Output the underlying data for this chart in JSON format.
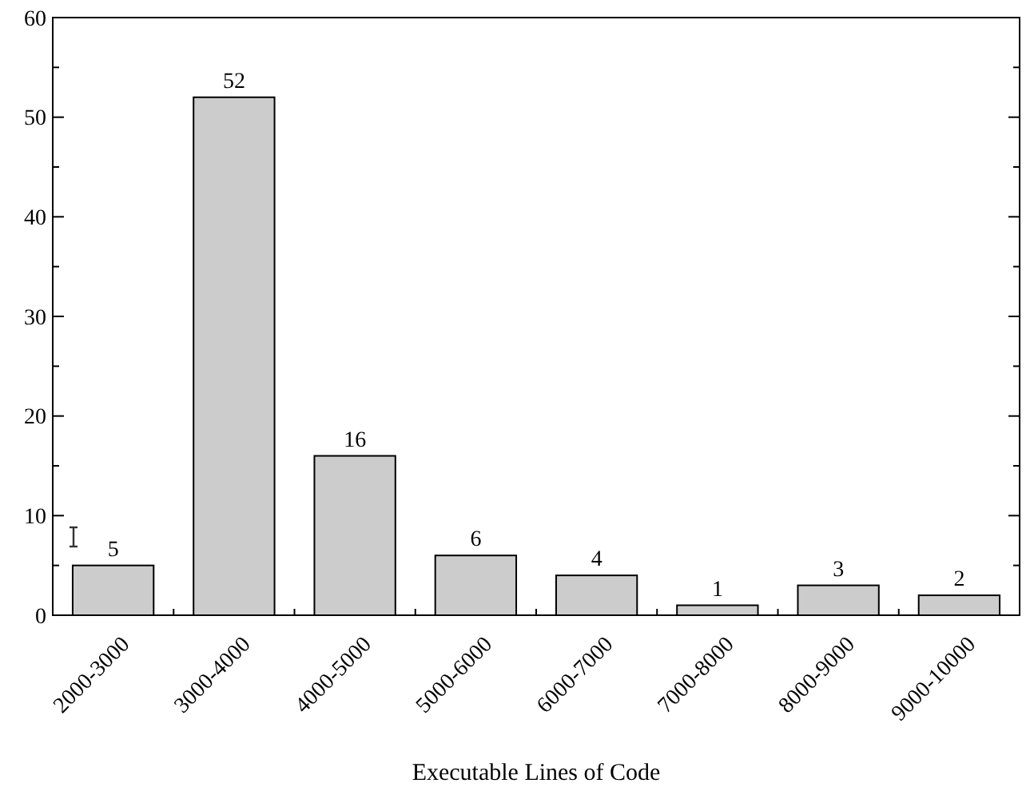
{
  "chart_data": {
    "type": "bar",
    "xlabel": "Executable Lines of Code",
    "categories": [
      "2000-3000",
      "3000-4000",
      "4000-5000",
      "5000-6000",
      "6000-7000",
      "7000-8000",
      "8000-9000",
      "9000-10000"
    ],
    "values": [
      5,
      52,
      16,
      6,
      4,
      1,
      3,
      2
    ],
    "color": "#cccccc",
    "data_labels": true,
    "ylim": [
      0,
      60
    ],
    "yticks": [
      0,
      {
        "value": 5,
        "label": null
      },
      10,
      {
        "value": 15,
        "label": null
      },
      20,
      {
        "value": 25,
        "label": null
      },
      30,
      {
        "value": 35,
        "label": null
      },
      40,
      {
        "value": 45,
        "label": null
      },
      50,
      {
        "value": 55,
        "label": null
      },
      60
    ],
    "grid": false
  }
}
